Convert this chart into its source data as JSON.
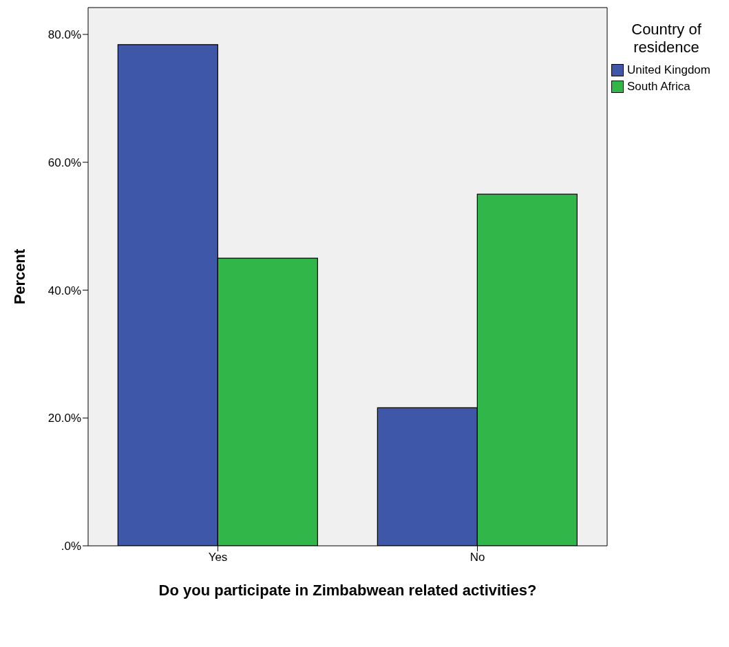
{
  "chart_data": {
    "type": "bar",
    "xlabel": "Do you participate in Zimbabwean related activities?",
    "ylabel": "Percent",
    "legend_title": "Country of residence",
    "legend": "top right",
    "grid": false,
    "categories": [
      "Yes",
      "No"
    ],
    "series": [
      {
        "name": "United Kingdom",
        "color": "#3f57a9",
        "values": [
          78.4,
          21.6
        ]
      },
      {
        "name": "South Africa",
        "color": "#31b64a",
        "values": [
          45.0,
          55.0
        ]
      }
    ],
    "ylim": [
      0,
      84.2
    ],
    "yticks": [
      {
        "value": 0,
        "label": ".0%"
      },
      {
        "value": 20,
        "label": "20.0%"
      },
      {
        "value": 40,
        "label": "40.0%"
      },
      {
        "value": 60,
        "label": "60.0%"
      },
      {
        "value": 80,
        "label": "80.0%"
      }
    ]
  }
}
